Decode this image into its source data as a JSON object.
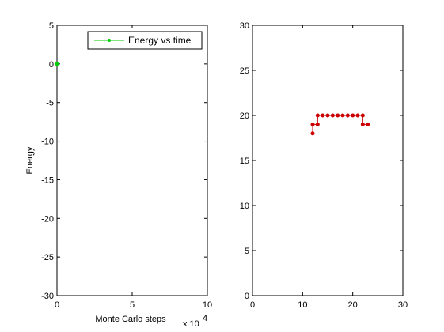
{
  "chart_data": [
    {
      "type": "line",
      "xlabel": "Monte Carlo steps",
      "ylabel": "Energy",
      "xlim": [
        0,
        100000
      ],
      "ylim": [
        -30,
        5
      ],
      "x_exponent_label": "x 10",
      "x_exponent_power": "4",
      "x_ticks": [
        0,
        50000,
        100000
      ],
      "x_tick_labels": [
        "0",
        "5",
        "10"
      ],
      "y_ticks": [
        5,
        0,
        -5,
        -10,
        -15,
        -20,
        -25,
        -30
      ],
      "y_tick_labels": [
        "5",
        "0",
        "-5",
        "-10",
        "-15",
        "-20",
        "-25",
        "-30"
      ],
      "grid": false,
      "legend": {
        "location": "top-right",
        "entries": [
          "Energy vs time"
        ]
      },
      "series": [
        {
          "name": "Energy vs time",
          "color": "#00cc00",
          "marker": "dot",
          "x": [
            0
          ],
          "y": [
            0
          ]
        }
      ]
    },
    {
      "type": "line",
      "xlabel": "",
      "ylabel": "",
      "xlim": [
        0,
        30
      ],
      "ylim": [
        0,
        30
      ],
      "x_ticks": [
        0,
        10,
        20,
        30
      ],
      "x_tick_labels": [
        "0",
        "10",
        "20",
        "30"
      ],
      "y_ticks": [
        0,
        5,
        10,
        15,
        20,
        25,
        30
      ],
      "y_tick_labels": [
        "0",
        "5",
        "10",
        "15",
        "20",
        "25",
        "30"
      ],
      "grid": false,
      "series": [
        {
          "color": "#cc0000",
          "marker": "dot",
          "x": [
            12,
            12,
            13,
            13,
            14,
            15,
            16,
            17,
            18,
            19,
            20,
            21,
            22,
            22,
            23
          ],
          "y": [
            18,
            19,
            19,
            20,
            20,
            20,
            20,
            20,
            20,
            20,
            20,
            20,
            20,
            19,
            19
          ]
        }
      ]
    }
  ]
}
